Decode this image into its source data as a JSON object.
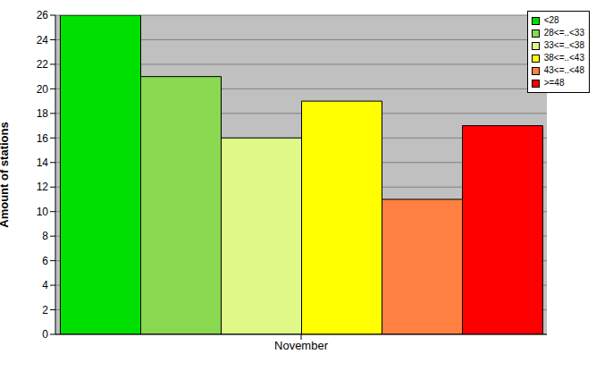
{
  "chart_data": {
    "type": "bar",
    "y_label": "Amount of stations",
    "categories": [
      "November"
    ],
    "series": [
      {
        "name": "<28",
        "color": "#00e000",
        "values": [
          26
        ]
      },
      {
        "name": "28<=..<33",
        "color": "#88d850",
        "values": [
          21
        ]
      },
      {
        "name": "33<=..<38",
        "color": "#dff888",
        "values": [
          16
        ]
      },
      {
        "name": "38<=..<43",
        "color": "#ffff00",
        "values": [
          19
        ]
      },
      {
        "name": "43<=..<48",
        "color": "#ff8040",
        "values": [
          11
        ]
      },
      {
        "name": ">=48",
        "color": "#ff0000",
        "values": [
          17
        ]
      }
    ],
    "ylim": [
      0,
      26
    ],
    "yticks": [
      0,
      2,
      4,
      6,
      8,
      10,
      12,
      14,
      16,
      18,
      20,
      22,
      24,
      26
    ],
    "grid": true,
    "legend": "top-right"
  }
}
